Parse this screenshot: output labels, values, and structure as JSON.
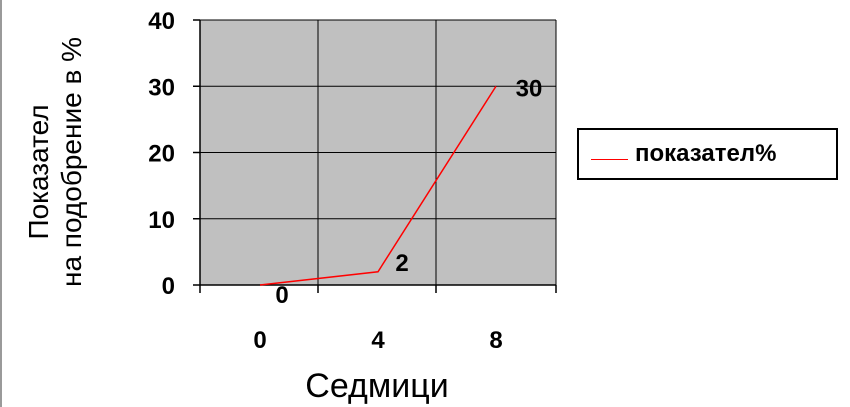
{
  "chart_data": {
    "type": "line",
    "x": [
      0,
      4,
      8
    ],
    "categories": [
      "0",
      "4",
      "8"
    ],
    "series": [
      {
        "name": "показател%",
        "values": [
          0,
          2,
          30
        ],
        "color": "#ff0000",
        "data_labels": [
          "0",
          "2",
          "30"
        ]
      }
    ],
    "xlabel": "Седмици",
    "ylabel_lines": [
      "Показател",
      "на подобрение в %"
    ],
    "ylim": [
      0,
      40
    ],
    "yticks": [
      "0",
      "10",
      "20",
      "30",
      "40"
    ],
    "grid": true,
    "plot_background": "#c0c0c0",
    "legend_position": "right"
  }
}
